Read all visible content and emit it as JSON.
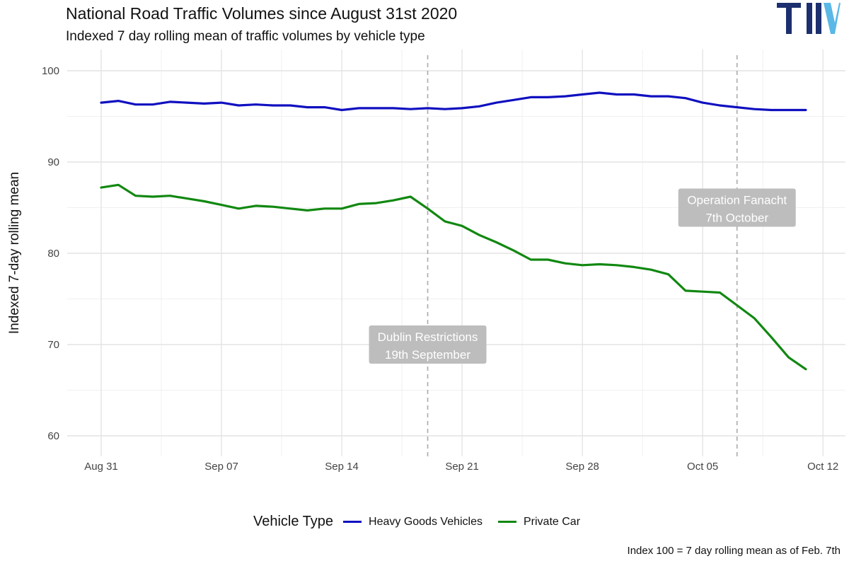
{
  "chart_data": {
    "type": "line",
    "title": "National Road Traffic Volumes since August 31st 2020",
    "subtitle": "Indexed 7 day rolling mean of traffic volumes by vehicle type",
    "ylabel": "Indexed 7-day rolling mean",
    "xlabel": "",
    "ylim": [
      59,
      102
    ],
    "xlim": [
      -3,
      43
    ],
    "y_ticks": [
      60,
      70,
      80,
      90,
      100
    ],
    "x_ticks": [
      {
        "day": 0,
        "label": "Aug 31"
      },
      {
        "day": 7,
        "label": "Sep 07"
      },
      {
        "day": 14,
        "label": "Sep 14"
      },
      {
        "day": 21,
        "label": "Sep 21"
      },
      {
        "day": 28,
        "label": "Sep 28"
      },
      {
        "day": 35,
        "label": "Oct 05"
      },
      {
        "day": 42,
        "label": "Oct 12"
      }
    ],
    "grid": true,
    "legend_title": "Vehicle Type",
    "legend_position": "bottom",
    "series": [
      {
        "name": "Heavy Goods Vehicles",
        "color": "#1010c0",
        "x": [
          0,
          1,
          2,
          3,
          4,
          5,
          6,
          7,
          8,
          9,
          10,
          11,
          12,
          13,
          14,
          15,
          16,
          17,
          18,
          19,
          20,
          21,
          22,
          23,
          24,
          25,
          26,
          27,
          28,
          29,
          30,
          31,
          32,
          33,
          34,
          35,
          36,
          37,
          38,
          39,
          40,
          41
        ],
        "values": [
          96.5,
          96.7,
          96.3,
          96.3,
          96.6,
          96.5,
          96.4,
          96.5,
          96.2,
          96.3,
          96.2,
          96.2,
          96.0,
          96.0,
          95.7,
          95.9,
          95.9,
          95.9,
          95.8,
          95.9,
          95.8,
          95.9,
          96.1,
          96.5,
          96.8,
          97.1,
          97.1,
          97.2,
          97.4,
          97.6,
          97.4,
          97.4,
          97.2,
          97.2,
          97.0,
          96.5,
          96.2,
          96.0,
          95.8,
          95.7,
          95.7,
          95.7
        ]
      },
      {
        "name": "Private Car",
        "color": "#118811",
        "x": [
          0,
          1,
          2,
          3,
          4,
          5,
          6,
          7,
          8,
          9,
          10,
          11,
          12,
          13,
          14,
          15,
          16,
          17,
          18,
          19,
          20,
          21,
          22,
          23,
          24,
          25,
          26,
          27,
          28,
          29,
          30,
          31,
          32,
          33,
          34,
          35,
          36,
          37,
          38,
          39,
          40,
          41
        ],
        "values": [
          87.2,
          87.5,
          86.3,
          86.2,
          86.3,
          86.0,
          85.7,
          85.3,
          84.9,
          85.2,
          85.1,
          84.9,
          84.7,
          84.9,
          84.9,
          85.4,
          85.5,
          85.8,
          86.2,
          84.9,
          83.5,
          83.0,
          82.0,
          81.2,
          80.3,
          79.3,
          79.3,
          78.9,
          78.7,
          78.8,
          78.7,
          78.5,
          78.2,
          77.7,
          75.9,
          75.8,
          75.7,
          74.3,
          72.9,
          70.8,
          68.6,
          67.3
        ]
      }
    ],
    "annotations": [
      {
        "day": 19,
        "line1": "Dublin Restrictions",
        "line2": "19th September",
        "label_y": 70.0
      },
      {
        "day": 37,
        "line1": "Operation Fanacht",
        "line2": "7th October",
        "label_y": 85.0
      }
    ]
  },
  "footnote": "Index 100 = 7 day rolling mean as of Feb. 7th",
  "logo_text": "TII"
}
